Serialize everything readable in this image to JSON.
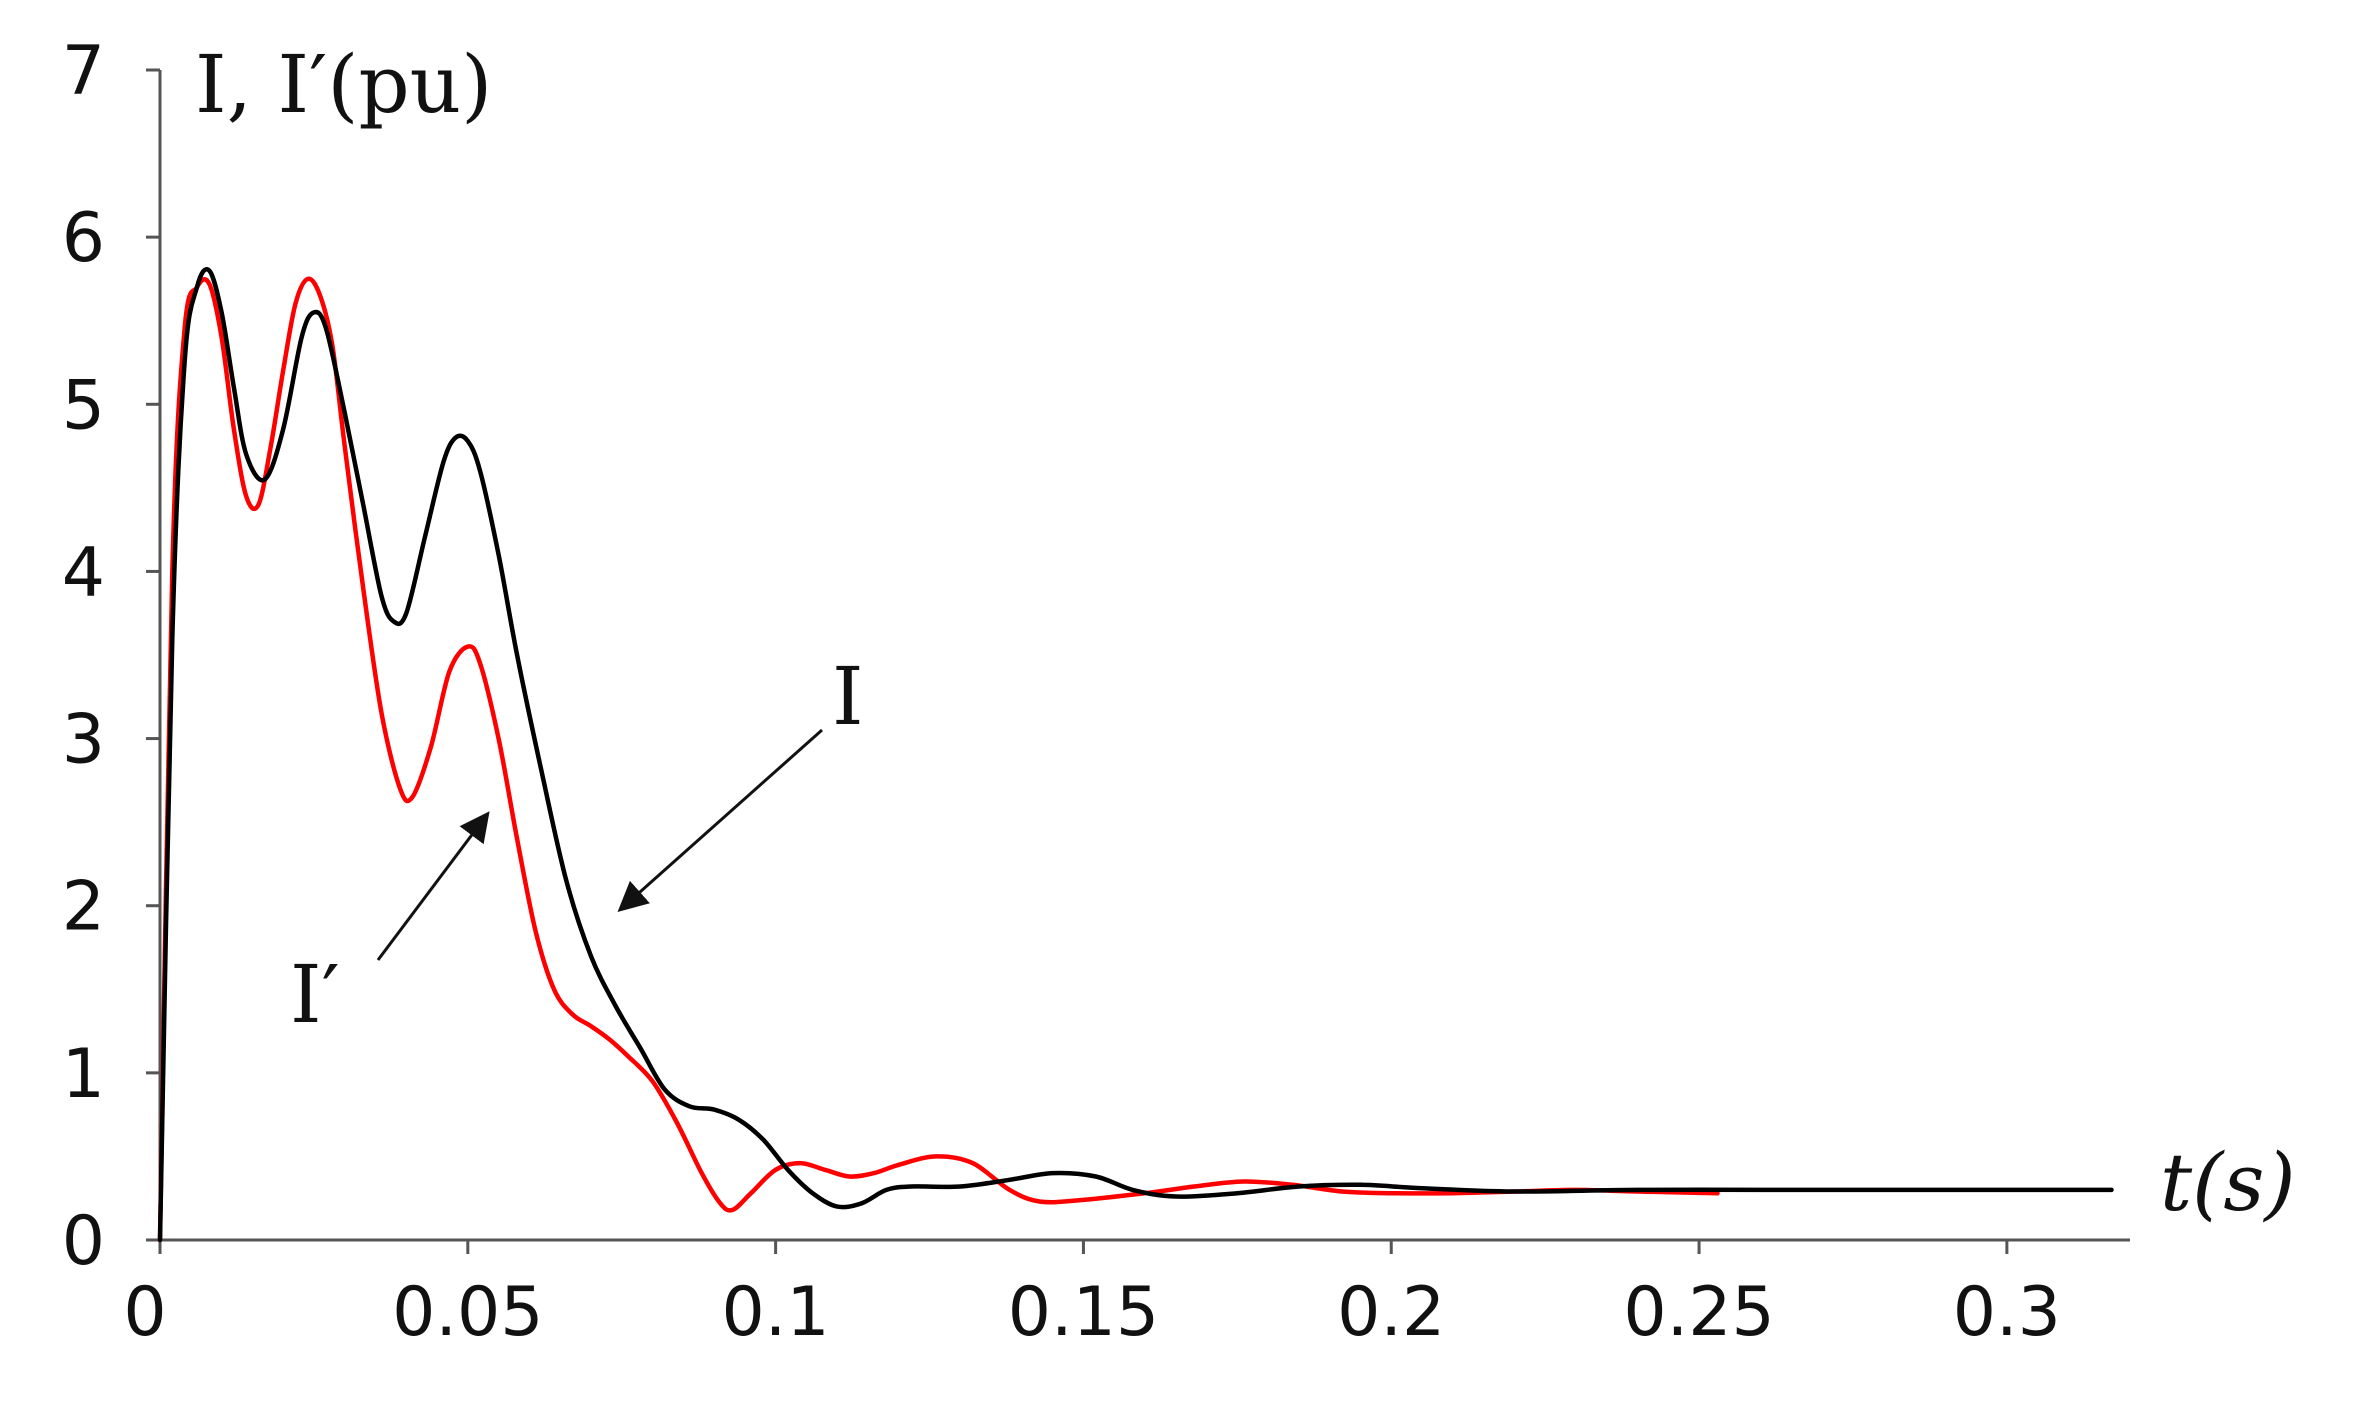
{
  "chart_data": {
    "type": "line",
    "title": "",
    "ylabel": "I, I′(pu)",
    "xlabel": "t(s)",
    "xlim": [
      0,
      0.32
    ],
    "ylim": [
      0,
      7
    ],
    "x_ticks": [
      0,
      0.05,
      0.1,
      0.15,
      0.2,
      0.25,
      0.3
    ],
    "x_tick_labels": [
      "0",
      "0.05",
      "0.1",
      "0.15",
      "0.2",
      "0.25",
      "0.3"
    ],
    "y_ticks": [
      0,
      1,
      2,
      3,
      4,
      5,
      6,
      7
    ],
    "y_tick_labels": [
      "0",
      "1",
      "2",
      "3",
      "4",
      "5",
      "6",
      "7"
    ],
    "grid": false,
    "legend": "none",
    "colors": {
      "I": "#000000",
      "I_prime": "#ff0000",
      "axis": "#555555",
      "arrow": "#111111"
    },
    "annotations": [
      {
        "text": "I",
        "series": "I",
        "points_to": [
          0.075,
          1.95
        ]
      },
      {
        "text": "I′",
        "series": "I′",
        "points_to": [
          0.055,
          2.55
        ]
      }
    ],
    "series": [
      {
        "name": "I",
        "color": "#000000",
        "x": [
          0,
          0.002,
          0.004,
          0.006,
          0.008,
          0.01,
          0.012,
          0.014,
          0.017,
          0.02,
          0.023,
          0.025,
          0.027,
          0.03,
          0.033,
          0.036,
          0.038,
          0.04,
          0.043,
          0.046,
          0.048,
          0.05,
          0.052,
          0.055,
          0.058,
          0.062,
          0.066,
          0.07,
          0.074,
          0.078,
          0.082,
          0.086,
          0.09,
          0.094,
          0.098,
          0.102,
          0.106,
          0.11,
          0.114,
          0.118,
          0.122,
          0.13,
          0.138,
          0.145,
          0.152,
          0.158,
          0.165,
          0.175,
          0.185,
          0.195,
          0.205,
          0.22,
          0.24,
          0.26,
          0.28,
          0.3,
          0.317
        ],
        "y": [
          0,
          3.6,
          5.25,
          5.7,
          5.8,
          5.55,
          5.1,
          4.7,
          4.55,
          4.85,
          5.4,
          5.55,
          5.45,
          4.95,
          4.4,
          3.85,
          3.7,
          3.75,
          4.2,
          4.65,
          4.8,
          4.78,
          4.6,
          4.1,
          3.5,
          2.8,
          2.15,
          1.7,
          1.4,
          1.15,
          0.9,
          0.8,
          0.78,
          0.72,
          0.6,
          0.42,
          0.28,
          0.2,
          0.22,
          0.3,
          0.32,
          0.32,
          0.36,
          0.4,
          0.38,
          0.3,
          0.26,
          0.28,
          0.32,
          0.33,
          0.31,
          0.29,
          0.3,
          0.3,
          0.3,
          0.3,
          0.3
        ]
      },
      {
        "name": "I′",
        "color": "#ff0000",
        "x": [
          0,
          0.002,
          0.004,
          0.006,
          0.008,
          0.01,
          0.012,
          0.014,
          0.016,
          0.018,
          0.02,
          0.022,
          0.024,
          0.026,
          0.028,
          0.03,
          0.033,
          0.036,
          0.039,
          0.041,
          0.044,
          0.047,
          0.05,
          0.052,
          0.055,
          0.058,
          0.061,
          0.064,
          0.067,
          0.07,
          0.073,
          0.076,
          0.08,
          0.084,
          0.088,
          0.091,
          0.093,
          0.096,
          0.1,
          0.104,
          0.108,
          0.112,
          0.116,
          0.12,
          0.126,
          0.132,
          0.138,
          0.143,
          0.15,
          0.16,
          0.168,
          0.176,
          0.184,
          0.192,
          0.2,
          0.21,
          0.22,
          0.23,
          0.24,
          0.253
        ],
        "y": [
          0,
          4.0,
          5.45,
          5.7,
          5.72,
          5.4,
          4.85,
          4.45,
          4.4,
          4.75,
          5.2,
          5.6,
          5.75,
          5.65,
          5.35,
          4.75,
          3.9,
          3.15,
          2.7,
          2.65,
          2.95,
          3.4,
          3.55,
          3.45,
          3.0,
          2.4,
          1.85,
          1.5,
          1.35,
          1.28,
          1.2,
          1.1,
          0.95,
          0.7,
          0.4,
          0.22,
          0.18,
          0.28,
          0.42,
          0.46,
          0.42,
          0.38,
          0.4,
          0.45,
          0.5,
          0.46,
          0.3,
          0.23,
          0.24,
          0.28,
          0.32,
          0.35,
          0.33,
          0.29,
          0.28,
          0.28,
          0.29,
          0.3,
          0.29,
          0.28
        ]
      }
    ]
  }
}
